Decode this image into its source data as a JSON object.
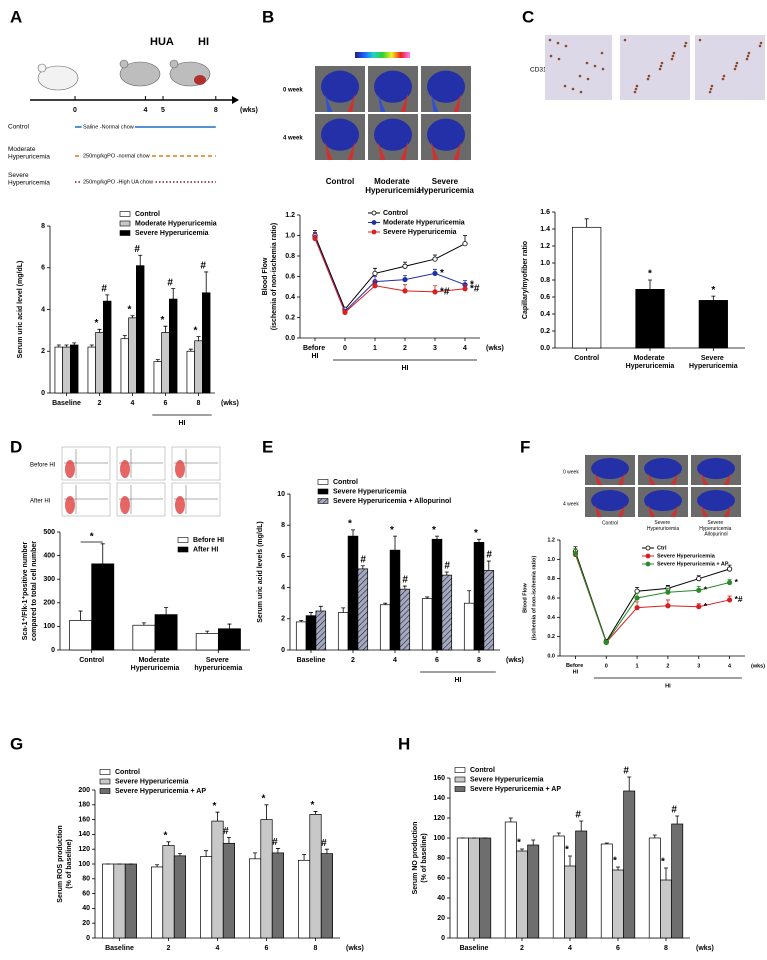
{
  "panel_labels": [
    "A",
    "B",
    "C",
    "D",
    "E",
    "F",
    "G",
    "H"
  ],
  "panel_a_diagram": {
    "stage_labels": [
      "HUA",
      "HI"
    ],
    "weeks": [
      0,
      4,
      5,
      8
    ],
    "unit": "(wks)",
    "groups": [
      {
        "name": "Control",
        "protocol": "Saline -Normal chow"
      },
      {
        "name": "Moderate Hyperuricemia",
        "protocol": "250mg/kgPO -normal chow"
      },
      {
        "name": "Severe Hyperuricemia",
        "protocol": "250mg/kgPO -High UA chow"
      }
    ]
  },
  "panel_b_images": {
    "rows": [
      "0 week",
      "4 week"
    ],
    "columns": [
      "Control",
      "Moderate Hyperuricemia",
      "Severe Hyperuricemia"
    ]
  },
  "panel_c_images": {
    "label": "CD31"
  },
  "panel_d_images": {
    "rows": [
      "Before HI",
      "After HI"
    ]
  },
  "panel_f_images": {
    "rows": [
      "0 week",
      "4 week"
    ],
    "columns": [
      "Control",
      "Severe Hyperuricemia",
      "Severe Hyperuricemia Allopurinol"
    ]
  },
  "chart_data": [
    {
      "type": "bar",
      "y_label": [
        "Serum uric acid level (mg/dL)"
      ],
      "x_label": "(wks)",
      "bracket_label": "HI",
      "categories": [
        "Baseline",
        "2",
        "4",
        "6",
        "8"
      ],
      "ylim": [
        0,
        8
      ],
      "yticks": [
        0,
        2,
        4,
        6,
        8
      ],
      "series": [
        {
          "name": "Control",
          "color": "#ffffff",
          "values": [
            2.2,
            2.2,
            2.6,
            1.5,
            2.0
          ],
          "errors": [
            0.1,
            0.1,
            0.15,
            0.1,
            0.1
          ]
        },
        {
          "name": "Moderate Hyperuricemia",
          "color": "#c8c8c8",
          "values": [
            2.2,
            2.9,
            3.6,
            2.9,
            2.5
          ],
          "errors": [
            0.1,
            0.15,
            0.1,
            0.3,
            0.2
          ],
          "marks": [
            null,
            "*",
            "*",
            "*",
            "*"
          ]
        },
        {
          "name": "Severe Hyperuricemia",
          "color": "#000000",
          "values": [
            2.3,
            4.4,
            6.1,
            4.5,
            4.8
          ],
          "errors": [
            0.1,
            0.3,
            0.5,
            0.5,
            1.0
          ],
          "marks": [
            null,
            "#",
            "#",
            "#",
            "#"
          ]
        }
      ]
    },
    {
      "type": "line",
      "y_label": [
        "Blood Flow",
        "(ischemia of non-ischemia ratio)"
      ],
      "x_label": "(wks)",
      "bracket_label": "HI",
      "categories": [
        "Before HI",
        "0",
        "1",
        "2",
        "3",
        "4"
      ],
      "ylim": [
        0,
        1.2
      ],
      "yticks": [
        {
          "value": 0,
          "label": "0.0"
        },
        0.2,
        0.4,
        0.6,
        0.8,
        {
          "value": 1,
          "label": "1.0"
        },
        1.2
      ],
      "series": [
        {
          "name": "Control",
          "color": "#000000",
          "marker_fill": "#ffffff",
          "values": [
            1.0,
            0.28,
            0.63,
            0.7,
            0.77,
            0.92
          ],
          "errors": [
            0.05,
            0.02,
            0.05,
            0.04,
            0.04,
            0.08
          ]
        },
        {
          "name": "Moderate Hyperuricemia",
          "color": "#1f2fa8",
          "marker_fill": "#1f2fa8",
          "values": [
            0.98,
            0.26,
            0.55,
            0.57,
            0.63,
            0.52
          ],
          "errors": [
            0.05,
            0.02,
            0.05,
            0.04,
            0.04,
            0.04
          ],
          "marks": [
            null,
            null,
            null,
            null,
            "*",
            "*"
          ]
        },
        {
          "name": "Severe Hyperuricemia",
          "color": "#d82020",
          "marker_fill": "#d82020",
          "values": [
            0.97,
            0.25,
            0.51,
            0.46,
            0.45,
            0.48
          ],
          "errors": [
            0.05,
            0.02,
            0.05,
            0.06,
            0.06,
            0.04
          ],
          "marks": [
            null,
            null,
            null,
            null,
            "*#",
            "*#"
          ]
        }
      ]
    },
    {
      "type": "bar",
      "y_label": [
        "Capillary/myofiber ratio"
      ],
      "categories": [
        "Control",
        "Moderate Hyperuricemia",
        "Severe Hyperuricemia"
      ],
      "ylim": [
        0,
        1.6
      ],
      "yticks": [
        {
          "value": 0,
          "label": "0.0"
        },
        0.2,
        0.4,
        0.6,
        0.8,
        {
          "value": 1,
          "label": "1.0"
        },
        1.2,
        1.4,
        1.6
      ],
      "values": [
        1.42,
        0.69,
        0.56
      ],
      "errors": [
        0.1,
        0.11,
        0.05
      ],
      "colors": [
        "#ffffff",
        "#000000",
        "#000000"
      ],
      "marks": [
        null,
        "*",
        "*"
      ]
    },
    {
      "type": "bar",
      "y_label": [
        "Sca-1⁺/Flk-1⁺positive number",
        "compared to total cell number"
      ],
      "significance_label": "*",
      "categories": [
        "Control",
        "Moderate Hyperuricemia",
        "Severe hyperuricemia"
      ],
      "ylim": [
        0,
        500
      ],
      "yticks": [
        0,
        100,
        200,
        300,
        400,
        500
      ],
      "series": [
        {
          "name": "Before HI",
          "color": "#ffffff",
          "values": [
            125,
            105,
            70
          ],
          "errors": [
            40,
            10,
            10
          ]
        },
        {
          "name": "After HI",
          "color": "#000000",
          "values": [
            365,
            150,
            90
          ],
          "errors": [
            85,
            30,
            20
          ]
        }
      ]
    },
    {
      "type": "bar",
      "y_label": [
        "Serum uric acid levels (mg/dL)"
      ],
      "x_label": "(wks)",
      "bracket_label": "HI",
      "categories": [
        "Baseline",
        "2",
        "4",
        "6",
        "8"
      ],
      "ylim": [
        0,
        10
      ],
      "yticks": [
        0,
        2,
        4,
        6,
        8,
        10
      ],
      "series": [
        {
          "name": "Control",
          "color": "#ffffff",
          "values": [
            1.8,
            2.4,
            2.9,
            3.3,
            3.0
          ],
          "errors": [
            0.1,
            0.3,
            0.1,
            0.1,
            0.8
          ]
        },
        {
          "name": "Severe Hyperuricemia",
          "color": "#000000",
          "values": [
            2.2,
            7.3,
            6.4,
            7.1,
            6.9
          ],
          "errors": [
            0.2,
            0.4,
            0.9,
            0.2,
            0.2
          ],
          "marks": [
            null,
            "*",
            "*",
            "*",
            "*"
          ]
        },
        {
          "name": "Severe Hyperuricemia + Allopurinol",
          "color": "#a4a8c0",
          "hatch": true,
          "values": [
            2.5,
            5.2,
            3.9,
            4.8,
            5.1
          ],
          "errors": [
            0.3,
            0.2,
            0.2,
            0.2,
            0.6
          ],
          "marks": [
            null,
            "* #",
            "* #",
            "* #",
            "* #"
          ]
        }
      ]
    },
    {
      "type": "line",
      "y_label": [
        "Blood Flow",
        "(ischemia of non-ischemia ratio)"
      ],
      "x_label": "(wks)",
      "bracket_label": "HI",
      "categories": [
        "Before HI",
        "0",
        "1",
        "2",
        "3",
        "4"
      ],
      "ylim": [
        0,
        1.2
      ],
      "yticks": [
        {
          "value": 0,
          "label": "0.0"
        },
        0.2,
        0.4,
        0.6,
        0.8,
        {
          "value": 1,
          "label": "1.0"
        },
        1.2
      ],
      "series": [
        {
          "name": "Ctrl",
          "color": "#000000",
          "marker_fill": "#ffffff",
          "values": [
            1.08,
            0.15,
            0.67,
            0.7,
            0.8,
            0.9
          ],
          "errors": [
            0.05,
            0.02,
            0.04,
            0.03,
            0.03,
            0.04
          ]
        },
        {
          "name": "Severe Hyperuricemia",
          "color": "#d82020",
          "marker_fill": "#d82020",
          "values": [
            1.05,
            0.14,
            0.5,
            0.52,
            0.51,
            0.58
          ],
          "errors": [
            0.05,
            0.02,
            0.06,
            0.06,
            0.03,
            0.04
          ],
          "marks": [
            null,
            null,
            null,
            null,
            "*",
            "*#"
          ]
        },
        {
          "name": "Severe Hyperuricemia + AP",
          "color": "#2a8a2a",
          "marker_fill": "#2a8a2a",
          "values": [
            1.06,
            0.14,
            0.6,
            0.66,
            0.68,
            0.76
          ],
          "errors": [
            0.05,
            0.02,
            0.05,
            0.04,
            0.04,
            0.03
          ],
          "marks": [
            null,
            null,
            null,
            null,
            "*",
            "*"
          ]
        }
      ]
    },
    {
      "type": "bar",
      "y_label": [
        "Serum ROS production",
        "(% of baseline)"
      ],
      "x_label": "(wks)",
      "categories": [
        "Baseline",
        "2",
        "4",
        "6",
        "8"
      ],
      "ylim": [
        0,
        200
      ],
      "yticks": [
        0,
        20,
        40,
        60,
        80,
        100,
        120,
        140,
        160,
        180,
        200
      ],
      "series": [
        {
          "name": "Control",
          "color": "#ffffff",
          "values": [
            100,
            96,
            110,
            107,
            105
          ],
          "errors": [
            0,
            3,
            8,
            8,
            8
          ]
        },
        {
          "name": "Severe Hyperuricemia",
          "color": "#c8c8c8",
          "values": [
            100,
            125,
            158,
            160,
            167
          ],
          "errors": [
            0,
            5,
            12,
            20,
            4
          ],
          "marks": [
            null,
            "*",
            "*",
            "*",
            "*"
          ]
        },
        {
          "name": "Severe Hyperuricemia + AP",
          "color": "#6e6e6e",
          "values": [
            100,
            111,
            128,
            115,
            114
          ],
          "errors": [
            0,
            3,
            8,
            6,
            6
          ],
          "marks": [
            null,
            null,
            "#",
            "#",
            "#"
          ]
        }
      ]
    },
    {
      "type": "bar",
      "y_label": [
        "Serum NO production",
        "(% of baseline)"
      ],
      "x_label": "(wks)",
      "categories": [
        "Baseline",
        "2",
        "4",
        "6",
        "8"
      ],
      "ylim": [
        0,
        160
      ],
      "yticks": [
        0,
        20,
        40,
        60,
        80,
        100,
        120,
        140,
        160
      ],
      "series": [
        {
          "name": "Control",
          "color": "#ffffff",
          "values": [
            100,
            116,
            102,
            94,
            100
          ],
          "errors": [
            0,
            4,
            3,
            1,
            3
          ],
          "marks": null
        },
        {
          "name": "Severe Hyperuricemia",
          "color": "#c8c8c8",
          "values": [
            100,
            87,
            72,
            68,
            58
          ],
          "errors": [
            0,
            2,
            10,
            3,
            12
          ],
          "marks": [
            null,
            "*",
            "*",
            "*",
            "*"
          ]
        },
        {
          "name": "Severe Hyperuricemia + AP",
          "color": "#6e6e6e",
          "values": [
            100,
            93,
            107,
            147,
            114
          ],
          "errors": [
            0,
            5,
            10,
            14,
            8
          ],
          "marks": [
            null,
            null,
            "#",
            "#",
            "#"
          ]
        }
      ]
    }
  ]
}
